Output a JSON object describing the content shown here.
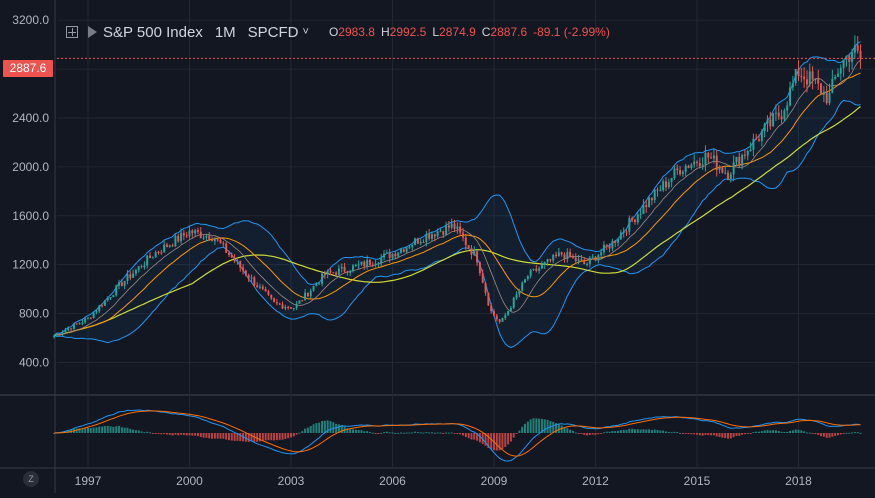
{
  "header": {
    "symbol_name": "S&P 500 Index",
    "interval": "1M",
    "exchange": "SPCFD",
    "open_label": "O",
    "open_value": "2983.8",
    "high_label": "H",
    "high_value": "2992.5",
    "low_label": "L",
    "low_value": "2874.9",
    "close_label": "C",
    "close_value": "2887.6",
    "change": "-89.1 (-2.99%)"
  },
  "last_price_label": "2887.6",
  "zoom_button": "Z",
  "colors": {
    "background": "#131722",
    "up": "#26a69a",
    "down": "#ef5350",
    "ma_fast": "#ff9800",
    "ma_slow": "#cddc39",
    "bands": "#2196f3",
    "macd": "#2196f3",
    "signal": "#ff6d00"
  },
  "chart_data": {
    "type": "candlestick",
    "y_ticks": [
      "400.0",
      "800.0",
      "1200.0",
      "1600.0",
      "2000.0",
      "2400.0",
      "2800.0",
      "3200.0"
    ],
    "x_ticks": [
      "1997",
      "2000",
      "2003",
      "2006",
      "2009",
      "2012",
      "2015",
      "2018"
    ],
    "ylim": [
      150,
      3300
    ],
    "last_price": 2887.6,
    "price_path": [
      [
        1996.0,
        620
      ],
      [
        1997.0,
        760
      ],
      [
        1998.0,
        1050
      ],
      [
        1999.0,
        1300
      ],
      [
        2000.0,
        1470
      ],
      [
        2000.7,
        1430
      ],
      [
        2001.5,
        1180
      ],
      [
        2002.5,
        880
      ],
      [
        2003.1,
        850
      ],
      [
        2004.0,
        1120
      ],
      [
        2005.0,
        1190
      ],
      [
        2006.0,
        1290
      ],
      [
        2007.0,
        1440
      ],
      [
        2007.8,
        1520
      ],
      [
        2008.5,
        1250
      ],
      [
        2008.9,
        820
      ],
      [
        2009.2,
        720
      ],
      [
        2010.0,
        1110
      ],
      [
        2011.0,
        1290
      ],
      [
        2011.7,
        1200
      ],
      [
        2012.5,
        1380
      ],
      [
        2013.5,
        1700
      ],
      [
        2014.5,
        1990
      ],
      [
        2015.3,
        2090
      ],
      [
        2015.9,
        1950
      ],
      [
        2016.5,
        2150
      ],
      [
        2017.5,
        2450
      ],
      [
        2018.0,
        2780
      ],
      [
        2018.4,
        2700
      ],
      [
        2018.9,
        2560
      ],
      [
        2019.2,
        2820
      ],
      [
        2019.6,
        2960
      ],
      [
        2019.8,
        2890
      ]
    ],
    "macd_range": [
      -1,
      1
    ]
  }
}
